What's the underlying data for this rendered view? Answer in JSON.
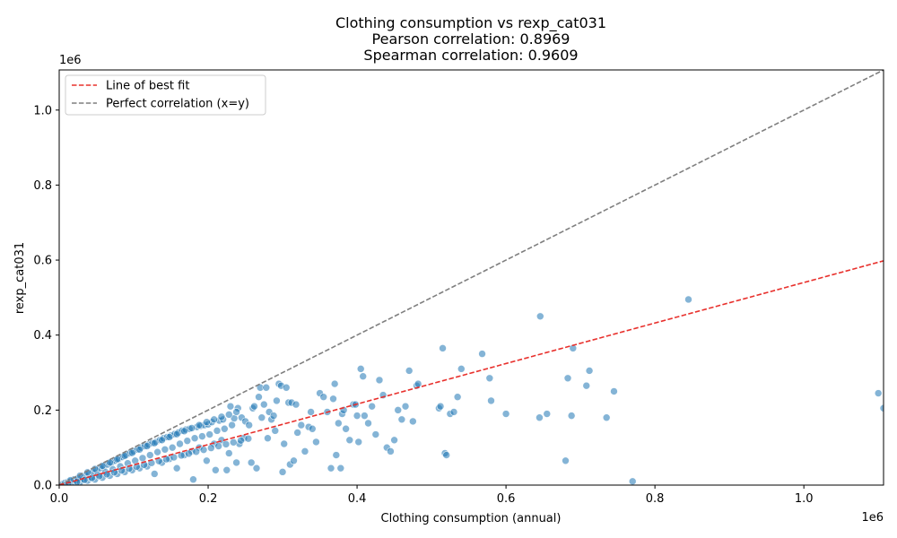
{
  "chart_data": {
    "type": "scatter",
    "title_lines": [
      "Clothing consumption vs rexp_cat031",
      "Pearson correlation: 0.8969",
      "Spearman correlation: 0.9609"
    ],
    "xlabel": "Clothing consumption (annual)",
    "ylabel": "rexp_cat031",
    "x_offset_label": "1e6",
    "y_offset_label": "1e6",
    "xlim": [
      0,
      1.107
    ],
    "ylim": [
      0,
      1.107
    ],
    "x_ticks": [
      0.0,
      0.2,
      0.4,
      0.6,
      0.8,
      1.0
    ],
    "y_ticks": [
      0.0,
      0.2,
      0.4,
      0.6,
      0.8,
      1.0
    ],
    "x_tick_labels": [
      "0.0",
      "0.2",
      "0.4",
      "0.6",
      "0.8",
      "1.0"
    ],
    "y_tick_labels": [
      "0.0",
      "0.2",
      "0.4",
      "0.6",
      "0.8",
      "1.0"
    ],
    "grid": false,
    "legend_position": "top-left",
    "legend": [
      {
        "label": "Line of best fit",
        "color": "#e8302c",
        "style": "dashed"
      },
      {
        "label": "Perfect correlation (x=y)",
        "color": "#7f7f7f",
        "style": "dashed"
      }
    ],
    "best_fit_line": {
      "x": [
        0,
        1.107
      ],
      "y": [
        0,
        0.598
      ]
    },
    "identity_line": {
      "x": [
        0,
        1.107
      ],
      "y": [
        0,
        1.107
      ]
    },
    "point_color": "#1f77b4",
    "points": [
      [
        0.005,
        0.003
      ],
      [
        0.008,
        0.006
      ],
      [
        0.01,
        0.004
      ],
      [
        0.012,
        0.009
      ],
      [
        0.015,
        0.01
      ],
      [
        0.018,
        0.005
      ],
      [
        0.02,
        0.015
      ],
      [
        0.022,
        0.012
      ],
      [
        0.025,
        0.018
      ],
      [
        0.028,
        0.008
      ],
      [
        0.03,
        0.022
      ],
      [
        0.032,
        0.016
      ],
      [
        0.035,
        0.026
      ],
      [
        0.038,
        0.012
      ],
      [
        0.04,
        0.03
      ],
      [
        0.042,
        0.02
      ],
      [
        0.045,
        0.034
      ],
      [
        0.048,
        0.015
      ],
      [
        0.05,
        0.04
      ],
      [
        0.052,
        0.028
      ],
      [
        0.055,
        0.045
      ],
      [
        0.058,
        0.02
      ],
      [
        0.06,
        0.05
      ],
      [
        0.062,
        0.035
      ],
      [
        0.065,
        0.055
      ],
      [
        0.068,
        0.025
      ],
      [
        0.07,
        0.06
      ],
      [
        0.072,
        0.042
      ],
      [
        0.075,
        0.065
      ],
      [
        0.078,
        0.03
      ],
      [
        0.08,
        0.07
      ],
      [
        0.082,
        0.05
      ],
      [
        0.085,
        0.075
      ],
      [
        0.088,
        0.035
      ],
      [
        0.09,
        0.08
      ],
      [
        0.092,
        0.058
      ],
      [
        0.095,
        0.085
      ],
      [
        0.098,
        0.04
      ],
      [
        0.1,
        0.09
      ],
      [
        0.102,
        0.065
      ],
      [
        0.105,
        0.095
      ],
      [
        0.108,
        0.045
      ],
      [
        0.11,
        0.1
      ],
      [
        0.112,
        0.072
      ],
      [
        0.115,
        0.104
      ],
      [
        0.118,
        0.05
      ],
      [
        0.12,
        0.108
      ],
      [
        0.122,
        0.08
      ],
      [
        0.125,
        0.112
      ],
      [
        0.128,
        0.03
      ],
      [
        0.13,
        0.115
      ],
      [
        0.132,
        0.088
      ],
      [
        0.135,
        0.12
      ],
      [
        0.138,
        0.06
      ],
      [
        0.14,
        0.125
      ],
      [
        0.142,
        0.095
      ],
      [
        0.145,
        0.128
      ],
      [
        0.148,
        0.07
      ],
      [
        0.15,
        0.132
      ],
      [
        0.152,
        0.1
      ],
      [
        0.155,
        0.136
      ],
      [
        0.158,
        0.045
      ],
      [
        0.16,
        0.14
      ],
      [
        0.162,
        0.11
      ],
      [
        0.165,
        0.145
      ],
      [
        0.168,
        0.08
      ],
      [
        0.17,
        0.148
      ],
      [
        0.172,
        0.118
      ],
      [
        0.175,
        0.15
      ],
      [
        0.178,
        0.09
      ],
      [
        0.18,
        0.015
      ],
      [
        0.182,
        0.125
      ],
      [
        0.185,
        0.155
      ],
      [
        0.188,
        0.1
      ],
      [
        0.19,
        0.158
      ],
      [
        0.192,
        0.13
      ],
      [
        0.195,
        0.16
      ],
      [
        0.198,
        0.065
      ],
      [
        0.2,
        0.162
      ],
      [
        0.202,
        0.135
      ],
      [
        0.205,
        0.168
      ],
      [
        0.208,
        0.11
      ],
      [
        0.21,
        0.04
      ],
      [
        0.212,
        0.145
      ],
      [
        0.215,
        0.172
      ],
      [
        0.218,
        0.12
      ],
      [
        0.22,
        0.175
      ],
      [
        0.222,
        0.15
      ],
      [
        0.225,
        0.04
      ],
      [
        0.228,
        0.085
      ],
      [
        0.23,
        0.21
      ],
      [
        0.232,
        0.16
      ],
      [
        0.235,
        0.178
      ],
      [
        0.238,
        0.06
      ],
      [
        0.24,
        0.205
      ],
      [
        0.242,
        0.11
      ],
      [
        0.245,
        0.18
      ],
      [
        0.248,
        0.125
      ],
      [
        0.25,
        0.17
      ],
      [
        0.255,
        0.16
      ],
      [
        0.258,
        0.06
      ],
      [
        0.26,
        0.205
      ],
      [
        0.262,
        0.21
      ],
      [
        0.265,
        0.045
      ],
      [
        0.268,
        0.235
      ],
      [
        0.27,
        0.26
      ],
      [
        0.272,
        0.18
      ],
      [
        0.275,
        0.215
      ],
      [
        0.278,
        0.26
      ],
      [
        0.28,
        0.125
      ],
      [
        0.282,
        0.195
      ],
      [
        0.285,
        0.175
      ],
      [
        0.288,
        0.185
      ],
      [
        0.29,
        0.145
      ],
      [
        0.292,
        0.225
      ],
      [
        0.295,
        0.27
      ],
      [
        0.298,
        0.265
      ],
      [
        0.3,
        0.035
      ],
      [
        0.302,
        0.11
      ],
      [
        0.305,
        0.26
      ],
      [
        0.308,
        0.22
      ],
      [
        0.31,
        0.055
      ],
      [
        0.312,
        0.22
      ],
      [
        0.315,
        0.065
      ],
      [
        0.318,
        0.215
      ],
      [
        0.32,
        0.14
      ],
      [
        0.325,
        0.16
      ],
      [
        0.33,
        0.09
      ],
      [
        0.335,
        0.155
      ],
      [
        0.338,
        0.195
      ],
      [
        0.34,
        0.15
      ],
      [
        0.345,
        0.115
      ],
      [
        0.35,
        0.245
      ],
      [
        0.355,
        0.235
      ],
      [
        0.36,
        0.195
      ],
      [
        0.365,
        0.045
      ],
      [
        0.368,
        0.23
      ],
      [
        0.37,
        0.27
      ],
      [
        0.372,
        0.08
      ],
      [
        0.375,
        0.165
      ],
      [
        0.378,
        0.045
      ],
      [
        0.38,
        0.19
      ],
      [
        0.382,
        0.2
      ],
      [
        0.385,
        0.15
      ],
      [
        0.39,
        0.12
      ],
      [
        0.395,
        0.215
      ],
      [
        0.398,
        0.215
      ],
      [
        0.4,
        0.185
      ],
      [
        0.402,
        0.115
      ],
      [
        0.405,
        0.31
      ],
      [
        0.408,
        0.29
      ],
      [
        0.41,
        0.185
      ],
      [
        0.415,
        0.165
      ],
      [
        0.42,
        0.21
      ],
      [
        0.425,
        0.135
      ],
      [
        0.43,
        0.28
      ],
      [
        0.435,
        0.24
      ],
      [
        0.44,
        0.1
      ],
      [
        0.445,
        0.09
      ],
      [
        0.45,
        0.12
      ],
      [
        0.455,
        0.2
      ],
      [
        0.46,
        0.175
      ],
      [
        0.465,
        0.21
      ],
      [
        0.47,
        0.305
      ],
      [
        0.475,
        0.17
      ],
      [
        0.48,
        0.265
      ],
      [
        0.482,
        0.27
      ],
      [
        0.51,
        0.205
      ],
      [
        0.512,
        0.21
      ],
      [
        0.515,
        0.365
      ],
      [
        0.518,
        0.085
      ],
      [
        0.52,
        0.08
      ],
      [
        0.525,
        0.19
      ],
      [
        0.53,
        0.195
      ],
      [
        0.535,
        0.235
      ],
      [
        0.54,
        0.31
      ],
      [
        0.568,
        0.35
      ],
      [
        0.578,
        0.285
      ],
      [
        0.58,
        0.225
      ],
      [
        0.6,
        0.19
      ],
      [
        0.645,
        0.18
      ],
      [
        0.646,
        0.45
      ],
      [
        0.655,
        0.19
      ],
      [
        0.68,
        0.065
      ],
      [
        0.683,
        0.285
      ],
      [
        0.688,
        0.185
      ],
      [
        0.69,
        0.365
      ],
      [
        0.708,
        0.265
      ],
      [
        0.712,
        0.305
      ],
      [
        0.735,
        0.18
      ],
      [
        0.745,
        0.25
      ],
      [
        0.77,
        0.01
      ],
      [
        0.845,
        0.495
      ],
      [
        1.1,
        0.245
      ],
      [
        1.107,
        0.205
      ],
      [
        0.015,
        0.013
      ],
      [
        0.028,
        0.025
      ],
      [
        0.038,
        0.034
      ],
      [
        0.048,
        0.043
      ],
      [
        0.058,
        0.051
      ],
      [
        0.068,
        0.06
      ],
      [
        0.078,
        0.069
      ],
      [
        0.088,
        0.078
      ],
      [
        0.098,
        0.086
      ],
      [
        0.108,
        0.095
      ],
      [
        0.118,
        0.104
      ],
      [
        0.128,
        0.112
      ],
      [
        0.138,
        0.12
      ],
      [
        0.148,
        0.128
      ],
      [
        0.158,
        0.136
      ],
      [
        0.168,
        0.144
      ],
      [
        0.178,
        0.152
      ],
      [
        0.188,
        0.16
      ],
      [
        0.198,
        0.168
      ],
      [
        0.208,
        0.175
      ],
      [
        0.218,
        0.182
      ],
      [
        0.228,
        0.188
      ],
      [
        0.238,
        0.195
      ],
      [
        0.012,
        0.004
      ],
      [
        0.024,
        0.009
      ],
      [
        0.034,
        0.014
      ],
      [
        0.044,
        0.019
      ],
      [
        0.054,
        0.024
      ],
      [
        0.064,
        0.029
      ],
      [
        0.074,
        0.034
      ],
      [
        0.084,
        0.039
      ],
      [
        0.094,
        0.044
      ],
      [
        0.104,
        0.049
      ],
      [
        0.114,
        0.054
      ],
      [
        0.124,
        0.059
      ],
      [
        0.134,
        0.064
      ],
      [
        0.144,
        0.069
      ],
      [
        0.154,
        0.074
      ],
      [
        0.164,
        0.079
      ],
      [
        0.174,
        0.084
      ],
      [
        0.184,
        0.089
      ],
      [
        0.194,
        0.094
      ],
      [
        0.204,
        0.099
      ],
      [
        0.214,
        0.104
      ],
      [
        0.224,
        0.109
      ],
      [
        0.234,
        0.114
      ],
      [
        0.244,
        0.119
      ],
      [
        0.254,
        0.124
      ]
    ]
  }
}
